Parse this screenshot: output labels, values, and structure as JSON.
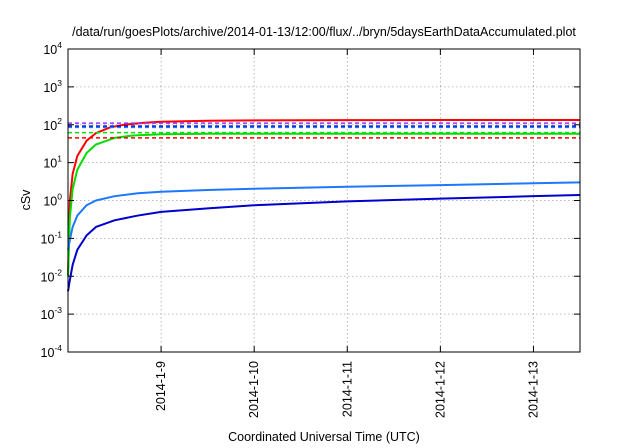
{
  "chart_data": {
    "type": "line",
    "title": "/data/run/goesPlots/archive/2014-01-13/12:00/flux/../bryn/5daysEarthDataAccumulated.plot",
    "xlabel": "Coordinated Universal Time (UTC)",
    "ylabel": "cSv",
    "yscale": "log",
    "ylim": [
      0.0001,
      10000
    ],
    "xlim_days": [
      0,
      5.5
    ],
    "grid": true,
    "x_tick_labels": [
      {
        "label": "2014-1-9",
        "day": 1
      },
      {
        "label": "2014-1-10",
        "day": 2
      },
      {
        "label": "2014-1-11",
        "day": 3
      },
      {
        "label": "2014-1-12",
        "day": 4
      },
      {
        "label": "2014-1-13",
        "day": 5
      }
    ],
    "y_ticks": [
      {
        "base": "10",
        "exp": "-4",
        "value": 0.0001
      },
      {
        "base": "10",
        "exp": "-3",
        "value": 0.001
      },
      {
        "base": "10",
        "exp": "-2",
        "value": 0.01
      },
      {
        "base": "10",
        "exp": "-1",
        "value": 0.1
      },
      {
        "base": "10",
        "exp": "0",
        "value": 1
      },
      {
        "base": "10",
        "exp": "1",
        "value": 10
      },
      {
        "base": "10",
        "exp": "2",
        "value": 100
      },
      {
        "base": "10",
        "exp": "3",
        "value": 1000
      },
      {
        "base": "10",
        "exp": "4",
        "value": 10000
      }
    ],
    "series": [
      {
        "color": "#ff0000",
        "style": "solid",
        "points": [
          [
            0,
            0.01
          ],
          [
            0.02,
            1.0
          ],
          [
            0.05,
            5
          ],
          [
            0.1,
            15
          ],
          [
            0.2,
            38
          ],
          [
            0.3,
            60
          ],
          [
            0.45,
            85
          ],
          [
            0.6,
            100
          ],
          [
            0.8,
            112
          ],
          [
            1.0,
            120
          ],
          [
            1.5,
            128
          ],
          [
            2.0,
            130
          ],
          [
            3.0,
            132
          ],
          [
            4.0,
            133
          ],
          [
            5.0,
            134
          ],
          [
            5.5,
            134
          ]
        ]
      },
      {
        "color": "#00dd00",
        "style": "solid",
        "points": [
          [
            0,
            0.01
          ],
          [
            0.02,
            0.35
          ],
          [
            0.05,
            2.0
          ],
          [
            0.1,
            6.5
          ],
          [
            0.2,
            18
          ],
          [
            0.3,
            30
          ],
          [
            0.5,
            45
          ],
          [
            0.7,
            52
          ],
          [
            1.0,
            56
          ],
          [
            1.5,
            58
          ],
          [
            2.0,
            58
          ],
          [
            3.0,
            58
          ],
          [
            4.0,
            58
          ],
          [
            5.0,
            58
          ],
          [
            5.5,
            58
          ]
        ]
      },
      {
        "color": "#1e78ff",
        "style": "solid",
        "points": [
          [
            0,
            0.05
          ],
          [
            0.02,
            0.09
          ],
          [
            0.05,
            0.2
          ],
          [
            0.1,
            0.4
          ],
          [
            0.2,
            0.75
          ],
          [
            0.3,
            1.0
          ],
          [
            0.5,
            1.3
          ],
          [
            0.75,
            1.55
          ],
          [
            1.0,
            1.7
          ],
          [
            1.5,
            1.9
          ],
          [
            2.0,
            2.05
          ],
          [
            3.0,
            2.3
          ],
          [
            4.0,
            2.55
          ],
          [
            5.0,
            2.85
          ],
          [
            5.5,
            3.0
          ]
        ]
      },
      {
        "color": "#0000cc",
        "style": "solid",
        "points": [
          [
            0,
            0.004
          ],
          [
            0.02,
            0.008
          ],
          [
            0.05,
            0.02
          ],
          [
            0.1,
            0.05
          ],
          [
            0.2,
            0.12
          ],
          [
            0.3,
            0.2
          ],
          [
            0.5,
            0.3
          ],
          [
            0.75,
            0.4
          ],
          [
            1.0,
            0.5
          ],
          [
            1.5,
            0.62
          ],
          [
            2.0,
            0.75
          ],
          [
            3.0,
            0.95
          ],
          [
            4.0,
            1.12
          ],
          [
            5.0,
            1.3
          ],
          [
            5.5,
            1.4
          ]
        ]
      },
      {
        "color": "#9933ff",
        "style": "dashed",
        "points": [
          [
            0,
            110
          ],
          [
            5.5,
            110
          ]
        ]
      },
      {
        "color": "#0000cc",
        "style": "dashed",
        "points": [
          [
            0,
            92
          ],
          [
            5.5,
            92
          ]
        ]
      },
      {
        "color": "#1e78ff",
        "style": "dashed",
        "points": [
          [
            0,
            85
          ],
          [
            5.5,
            85
          ]
        ]
      },
      {
        "color": "#00dd00",
        "style": "dashed",
        "points": [
          [
            0,
            62
          ],
          [
            5.5,
            62
          ]
        ]
      },
      {
        "color": "#ff0000",
        "style": "dashed",
        "points": [
          [
            0,
            45
          ],
          [
            5.5,
            45
          ]
        ]
      }
    ]
  }
}
